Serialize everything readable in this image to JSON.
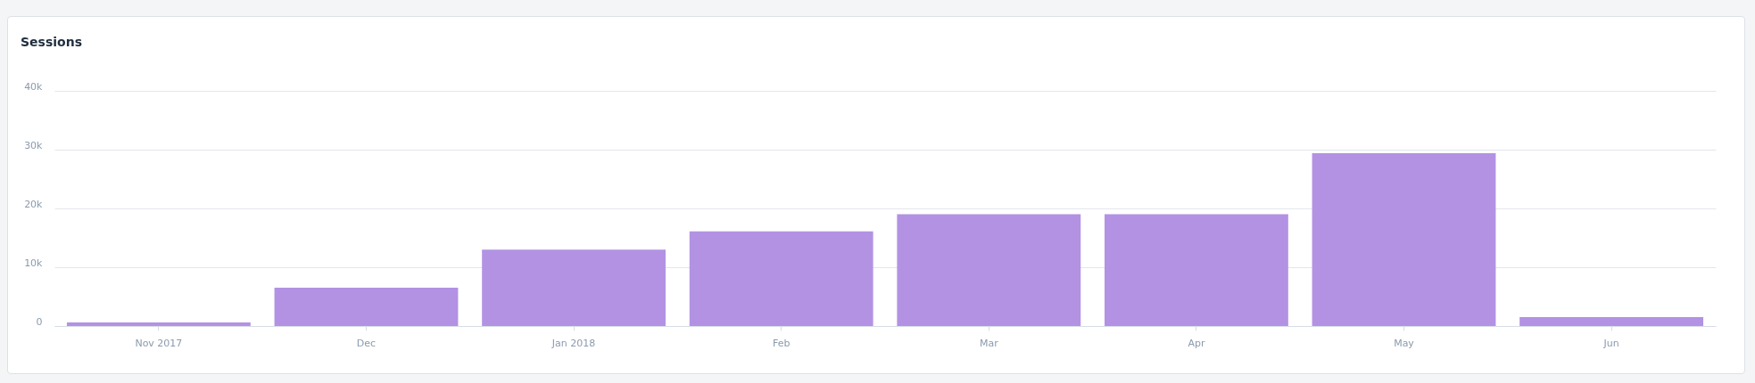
{
  "chart_data": {
    "type": "bar",
    "title": "Sessions",
    "categories": [
      "Nov 2017",
      "Dec",
      "Jan 2018",
      "Feb",
      "Mar",
      "Apr",
      "May",
      "Jun"
    ],
    "values": [
      600,
      6500,
      13000,
      16100,
      19000,
      19000,
      29400,
      1500
    ],
    "color": "#b392e4",
    "ylim": [
      0,
      40000
    ],
    "yticks": [
      {
        "value": 0,
        "label": "0"
      },
      {
        "value": 10000,
        "label": "10k"
      },
      {
        "value": 20000,
        "label": "20k"
      },
      {
        "value": 30000,
        "label": "30k"
      },
      {
        "value": 40000,
        "label": "40k"
      }
    ],
    "grid": "y"
  }
}
